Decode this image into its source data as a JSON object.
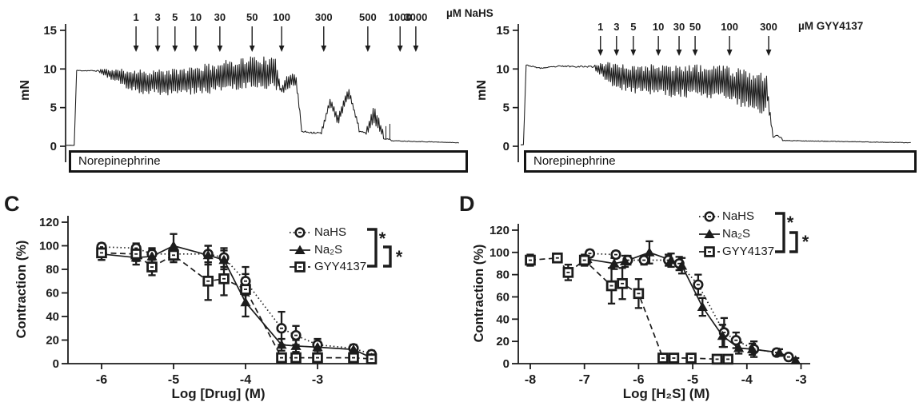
{
  "figure_background": "#ffffff",
  "ink_color": "#1c1c1c",
  "chart_data": [
    {
      "id": "trace_nahs",
      "type": "line",
      "kind": "isometric-tension-recording",
      "ylabel": "mN",
      "unit_label": "µM NaHS",
      "bar_label": "Norepinephrine",
      "yticks": [
        0,
        5,
        10,
        15
      ],
      "ylim": [
        0,
        15
      ],
      "additions": [
        {
          "label": "1",
          "x": 0.177
        },
        {
          "label": "3",
          "x": 0.232
        },
        {
          "label": "5",
          "x": 0.276
        },
        {
          "label": "10",
          "x": 0.329
        },
        {
          "label": "30",
          "x": 0.39
        },
        {
          "label": "50",
          "x": 0.472
        },
        {
          "label": "100",
          "x": 0.547
        },
        {
          "label": "300",
          "x": 0.654
        },
        {
          "label": "500",
          "x": 0.766
        },
        {
          "label": "1000",
          "x": 0.848
        },
        {
          "label": "3000",
          "x": 0.888
        }
      ],
      "seed": 11,
      "envelope": [
        [
          0.0,
          0.02,
          0.12,
          0.12,
          0.02,
          0.02
        ],
        [
          0.02,
          0.026,
          0.12,
          9.8,
          0.0,
          0.0
        ],
        [
          0.026,
          0.085,
          9.8,
          9.75,
          0.05,
          0.08
        ],
        [
          0.085,
          0.15,
          9.7,
          8.8,
          0.3,
          1.2
        ],
        [
          0.15,
          0.19,
          8.7,
          8.4,
          1.3,
          1.6
        ],
        [
          0.19,
          0.27,
          8.35,
          8.3,
          1.6,
          1.7
        ],
        [
          0.27,
          0.34,
          8.3,
          8.6,
          1.7,
          1.9
        ],
        [
          0.34,
          0.42,
          8.6,
          9.2,
          1.9,
          2.1
        ],
        [
          0.42,
          0.48,
          9.2,
          9.6,
          2.1,
          2.2
        ],
        [
          0.48,
          0.536,
          9.6,
          9.3,
          2.2,
          2.0
        ],
        [
          0.536,
          0.545,
          9.0,
          7.2,
          1.2,
          0.5
        ],
        [
          0.545,
          0.56,
          7.2,
          8.2,
          0.5,
          1.0
        ],
        [
          0.56,
          0.584,
          8.4,
          8.7,
          1.0,
          1.1
        ],
        [
          0.584,
          0.598,
          8.5,
          2.2,
          0.7,
          0.15
        ],
        [
          0.598,
          0.648,
          1.9,
          1.7,
          0.12,
          0.15
        ],
        [
          0.648,
          0.67,
          1.8,
          5.8,
          0.3,
          0.5
        ],
        [
          0.67,
          0.69,
          5.8,
          3.3,
          0.5,
          0.7
        ],
        [
          0.69,
          0.718,
          3.4,
          7.1,
          0.7,
          0.8
        ],
        [
          0.718,
          0.744,
          7.0,
          2.4,
          0.5,
          0.25
        ],
        [
          0.744,
          0.762,
          1.9,
          1.7,
          0.12,
          0.1
        ],
        [
          0.762,
          0.782,
          1.9,
          4.3,
          0.5,
          1.3
        ],
        [
          0.782,
          0.806,
          3.9,
          1.6,
          1.5,
          0.4
        ],
        [
          0.806,
          0.826,
          1.0,
          0.85,
          0.06,
          0.05
        ],
        [
          0.826,
          1.0,
          0.72,
          0.45,
          0.04,
          0.03
        ]
      ],
      "spikes": [
        {
          "x": 0.812,
          "v": 2.6
        },
        {
          "x": 0.822,
          "v": 2.9
        }
      ]
    },
    {
      "id": "trace_gyy4137",
      "type": "line",
      "kind": "isometric-tension-recording",
      "ylabel": "mN",
      "unit_label": "µM GYY4137",
      "bar_label": "Norepinephrine",
      "yticks": [
        0,
        5,
        10,
        15
      ],
      "ylim": [
        0,
        15
      ],
      "additions": [
        {
          "label": "1",
          "x": 0.204
        },
        {
          "label": "3",
          "x": 0.245
        },
        {
          "label": "5",
          "x": 0.288
        },
        {
          "label": "10",
          "x": 0.352
        },
        {
          "label": "30",
          "x": 0.405
        },
        {
          "label": "50",
          "x": 0.446
        },
        {
          "label": "100",
          "x": 0.534
        },
        {
          "label": "300",
          "x": 0.634
        }
      ],
      "seed": 23,
      "envelope": [
        [
          0.0,
          0.007,
          0.2,
          0.2,
          0.02,
          0.02
        ],
        [
          0.007,
          0.014,
          0.2,
          10.55,
          0.0,
          0.0
        ],
        [
          0.014,
          0.05,
          10.5,
          10.1,
          0.06,
          0.06
        ],
        [
          0.05,
          0.1,
          10.1,
          10.35,
          0.06,
          0.08
        ],
        [
          0.1,
          0.19,
          10.35,
          10.3,
          0.08,
          0.12
        ],
        [
          0.19,
          0.23,
          10.1,
          9.5,
          0.5,
          1.4
        ],
        [
          0.23,
          0.3,
          9.3,
          8.7,
          1.6,
          2.0
        ],
        [
          0.3,
          0.38,
          8.7,
          8.5,
          2.0,
          2.1
        ],
        [
          0.38,
          0.46,
          8.5,
          8.4,
          2.1,
          2.2
        ],
        [
          0.46,
          0.53,
          8.4,
          8.1,
          2.2,
          2.3
        ],
        [
          0.53,
          0.59,
          7.9,
          7.3,
          2.4,
          2.6
        ],
        [
          0.59,
          0.631,
          7.1,
          6.9,
          2.7,
          2.9
        ],
        [
          0.631,
          0.645,
          6.5,
          1.3,
          1.2,
          0.1
        ],
        [
          0.645,
          0.655,
          1.2,
          1.5,
          0.1,
          0.15
        ],
        [
          0.655,
          0.67,
          1.5,
          0.9,
          0.1,
          0.06
        ],
        [
          0.67,
          1.0,
          0.75,
          0.45,
          0.04,
          0.03
        ]
      ],
      "spikes": []
    },
    {
      "id": "dose_response_drug",
      "type": "scatter",
      "panel_label": "C",
      "xlabel": "Log [Drug] (M)",
      "ylabel": "Contraction (%)",
      "xticks": [
        -6,
        -5,
        -4,
        -3
      ],
      "xlim": [
        -6.47,
        -2.19
      ],
      "yticks": [
        0,
        20,
        40,
        60,
        80,
        100,
        120
      ],
      "ylim": [
        0,
        125
      ],
      "grid": false,
      "legend_position": "top-right",
      "significance": [
        {
          "between": [
            "NaHS",
            "GYY4137"
          ],
          "symbol": "*"
        },
        {
          "between": [
            "Na₂S",
            "GYY4137"
          ],
          "symbol": "*"
        }
      ],
      "series": [
        {
          "name": "NaHS",
          "marker": "circle-open",
          "line": "dotted",
          "x": [
            -6,
            -5.52,
            -5.3,
            -5,
            -4.52,
            -4.3,
            -4,
            -3.5,
            -3.3,
            -3,
            -2.5,
            -2.25
          ],
          "y": [
            99,
            98,
            93,
            93,
            93,
            90,
            70,
            30,
            24,
            16,
            13,
            8
          ],
          "err": [
            3,
            4,
            5,
            5,
            7,
            8,
            12,
            14,
            8,
            5,
            3,
            3
          ]
        },
        {
          "name": "Na₂S",
          "marker": "triangle-filled",
          "line": "solid",
          "x": [
            -6,
            -5.52,
            -5.3,
            -5,
            -4.52,
            -4.3,
            -4,
            -3.5,
            -3.3,
            -3,
            -2.5,
            -2.25
          ],
          "y": [
            93,
            90,
            91,
            100,
            92,
            88,
            52,
            16,
            15,
            14,
            12,
            5
          ],
          "err": [
            5,
            6,
            6,
            10,
            8,
            8,
            12,
            5,
            5,
            5,
            4,
            3
          ]
        },
        {
          "name": "GYY4137",
          "marker": "square-open",
          "line": "dashed",
          "x": [
            -6,
            -5.52,
            -5.3,
            -5,
            -4.52,
            -4.3,
            -4,
            -3.5,
            -3.3,
            -3,
            -2.5,
            -2.25
          ],
          "y": [
            94,
            93,
            82,
            92,
            70,
            72,
            63,
            5,
            5,
            5,
            5,
            4
          ],
          "err": [
            6,
            6,
            7,
            6,
            16,
            14,
            13,
            2,
            2,
            2,
            2,
            2
          ]
        }
      ]
    },
    {
      "id": "dose_response_h2s",
      "type": "scatter",
      "panel_label": "D",
      "xlabel": "Log [H₂S] (M)",
      "ylabel": "Contraction (%)",
      "xticks": [
        -8,
        -7,
        -6,
        -5,
        -4,
        -3
      ],
      "xlim": [
        -8.22,
        -2.84
      ],
      "yticks": [
        0,
        20,
        40,
        60,
        80,
        100,
        120
      ],
      "ylim": [
        0,
        125
      ],
      "grid": false,
      "legend_position": "top-right",
      "significance": [
        {
          "between": [
            "NaHS",
            "GYY4137"
          ],
          "symbol": "*"
        },
        {
          "between": [
            "Na₂S",
            "GYY4137"
          ],
          "symbol": "*"
        }
      ],
      "series": [
        {
          "name": "NaHS",
          "marker": "circle-open",
          "line": "dotted",
          "x": [
            -6.9,
            -6.42,
            -6.2,
            -5.9,
            -5.45,
            -5.25,
            -4.9,
            -4.42,
            -4.2,
            -3.87,
            -3.45,
            -3.23
          ],
          "y": [
            99,
            98,
            93,
            93,
            93,
            90,
            71,
            28,
            21,
            13,
            10,
            6
          ],
          "err": [
            3,
            3,
            4,
            4,
            5,
            6,
            9,
            13,
            7,
            7,
            3,
            2
          ]
        },
        {
          "name": "Na₂S",
          "marker": "triangle-filled",
          "line": "solid",
          "x": [
            -6.95,
            -6.45,
            -6.25,
            -5.8,
            -5.4,
            -5.2,
            -4.82,
            -4.45,
            -4.15,
            -3.9,
            -3.4,
            -3.1
          ],
          "y": [
            94,
            90,
            92,
            100,
            93,
            88,
            51,
            25,
            14,
            13,
            10,
            3
          ],
          "err": [
            4,
            5,
            5,
            10,
            6,
            7,
            8,
            10,
            5,
            5,
            3,
            2
          ]
        },
        {
          "name": "GYY4137",
          "marker": "square-open",
          "line": "dashed",
          "x": [
            -8,
            -7.5,
            -7.3,
            -7,
            -6.5,
            -6.3,
            -6,
            -5.55,
            -5.35,
            -5.03,
            -4.55,
            -4.35
          ],
          "y": [
            93,
            95,
            82,
            93,
            70,
            72,
            63,
            5,
            5,
            5,
            4,
            4
          ],
          "err": [
            5,
            4,
            7,
            5,
            16,
            14,
            13,
            2,
            2,
            2,
            2,
            2
          ]
        }
      ]
    }
  ]
}
